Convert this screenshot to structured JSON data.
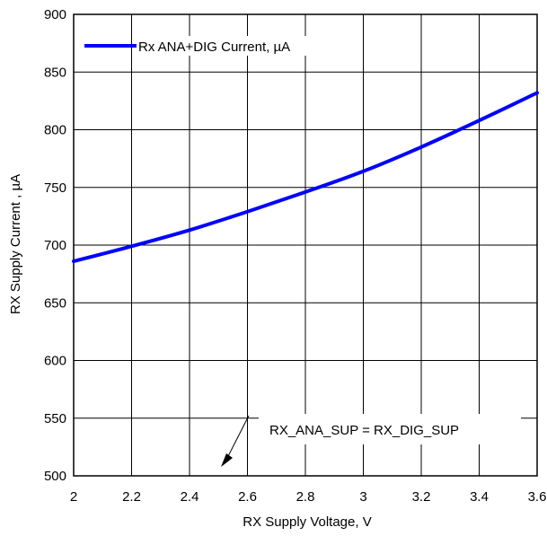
{
  "chart_data": {
    "type": "line",
    "xlabel": "RX Supply Voltage, V",
    "ylabel": "RX Supply Current , µA",
    "xlim": [
      2,
      3.6
    ],
    "ylim": [
      500,
      900
    ],
    "x_ticks": [
      "2",
      "2.2",
      "2.4",
      "2.6",
      "2.8",
      "3",
      "3.2",
      "3.4",
      "3.6"
    ],
    "y_ticks": [
      "500",
      "550",
      "600",
      "650",
      "700",
      "750",
      "800",
      "850",
      "900"
    ],
    "grid": true,
    "legend_position": "top-left",
    "series": [
      {
        "name": "Rx ANA+DIG Current, µA",
        "color": "#0000ff",
        "x": [
          2.0,
          2.2,
          2.4,
          2.6,
          2.8,
          3.0,
          3.2,
          3.4,
          3.6
        ],
        "y": [
          686,
          699,
          713,
          729,
          746,
          764,
          785,
          808,
          832
        ]
      }
    ],
    "annotations": [
      {
        "text": "RX_ANA_SUP = RX_DIG_SUP"
      }
    ]
  }
}
